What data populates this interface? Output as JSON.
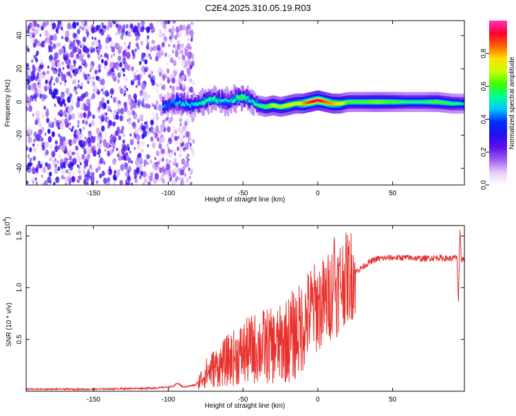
{
  "title": "C2E4.2025.310.05.19.R03",
  "chart_data": [
    {
      "type": "heatmap",
      "name": "spectrogram",
      "xlabel": "Height of straight line (km)",
      "ylabel": "Frequency (Hz)",
      "xlim": [
        -195,
        98
      ],
      "ylim": [
        -50,
        49
      ],
      "xticks": [
        -150,
        -100,
        -50,
        0,
        50
      ],
      "yticks": [
        -40,
        -20,
        0,
        20,
        40
      ],
      "colorbar": {
        "label": "Normalized spectral amplitude",
        "range": [
          0,
          1
        ],
        "ticks": [
          0.0,
          0.2,
          0.4,
          0.6,
          0.8
        ],
        "colors": [
          "#ffffff",
          "#e8ccf8",
          "#9e5cf0",
          "#5a10ee",
          "#2010f0",
          "#0030ff",
          "#00c8ff",
          "#00ff90",
          "#40ff00",
          "#c8ff00",
          "#ffe000",
          "#ff6000",
          "#ff0030",
          "#ff30c0"
        ]
      },
      "noise_region_x": [
        -195,
        -83
      ],
      "ridge": {
        "x": [
          -104,
          -100,
          -95,
          -90,
          -85,
          -80,
          -75,
          -70,
          -65,
          -60,
          -55,
          -50,
          -45,
          -40,
          -35,
          -30,
          -25,
          -20,
          -15,
          -10,
          -5,
          0,
          5,
          10,
          15,
          20,
          30,
          40,
          50,
          60,
          70,
          80,
          90,
          98
        ],
        "freq": [
          -3,
          -2,
          0,
          -1,
          -2,
          -1,
          1,
          2,
          1,
          0,
          2,
          3,
          1,
          -2,
          -3,
          -2,
          -3,
          -2,
          -1,
          -1,
          0,
          1,
          0,
          -1,
          -1,
          0,
          0,
          0,
          0,
          0,
          0,
          0,
          -1,
          -1
        ],
        "amplitude": [
          0.45,
          0.4,
          0.45,
          0.5,
          0.45,
          0.5,
          0.55,
          0.55,
          0.5,
          0.5,
          0.55,
          0.6,
          0.5,
          0.55,
          0.6,
          0.7,
          0.65,
          0.75,
          0.7,
          0.8,
          0.9,
          0.95,
          0.85,
          0.8,
          0.75,
          0.6,
          0.6,
          0.65,
          0.6,
          0.55,
          0.55,
          0.6,
          0.55,
          0.5
        ]
      }
    },
    {
      "type": "line",
      "name": "snr",
      "xlabel": "Height of straight line (km)",
      "ylabel": "SNR (10 * v/v)",
      "y_multiplier": "(x10",
      "y_exponent": "4",
      "y_multiplier_close": ")",
      "xlim": [
        -195,
        98
      ],
      "ylim": [
        0,
        1.6
      ],
      "xticks": [
        -150,
        -100,
        -50,
        0,
        50
      ],
      "yticks": [
        0.5,
        1.0,
        1.5
      ],
      "line_color": "#e8302c",
      "series": [
        {
          "name": "SNR",
          "x": [
            -195,
            -150,
            -110,
            -100,
            -96,
            -94,
            -90,
            -82,
            -78,
            -75,
            -70,
            -65,
            -60,
            -55,
            -50,
            -45,
            -40,
            -35,
            -30,
            -25,
            -20,
            -15,
            -10,
            -5,
            0,
            5,
            8,
            10,
            11,
            12,
            15,
            20,
            25,
            30,
            35,
            40,
            50,
            60,
            70,
            80,
            90,
            93,
            94,
            95,
            96,
            98
          ],
          "y": [
            0.02,
            0.02,
            0.03,
            0.04,
            0.05,
            0.08,
            0.04,
            0.06,
            0.12,
            0.17,
            0.22,
            0.25,
            0.3,
            0.33,
            0.37,
            0.4,
            0.42,
            0.44,
            0.43,
            0.45,
            0.5,
            0.55,
            0.63,
            0.78,
            0.82,
            0.86,
            0.92,
            1.0,
            1.52,
            0.95,
            1.05,
            1.1,
            1.15,
            1.2,
            1.25,
            1.28,
            1.29,
            1.29,
            1.28,
            1.29,
            1.28,
            1.3,
            0.85,
            1.58,
            1.27,
            1.28
          ]
        }
      ]
    }
  ]
}
